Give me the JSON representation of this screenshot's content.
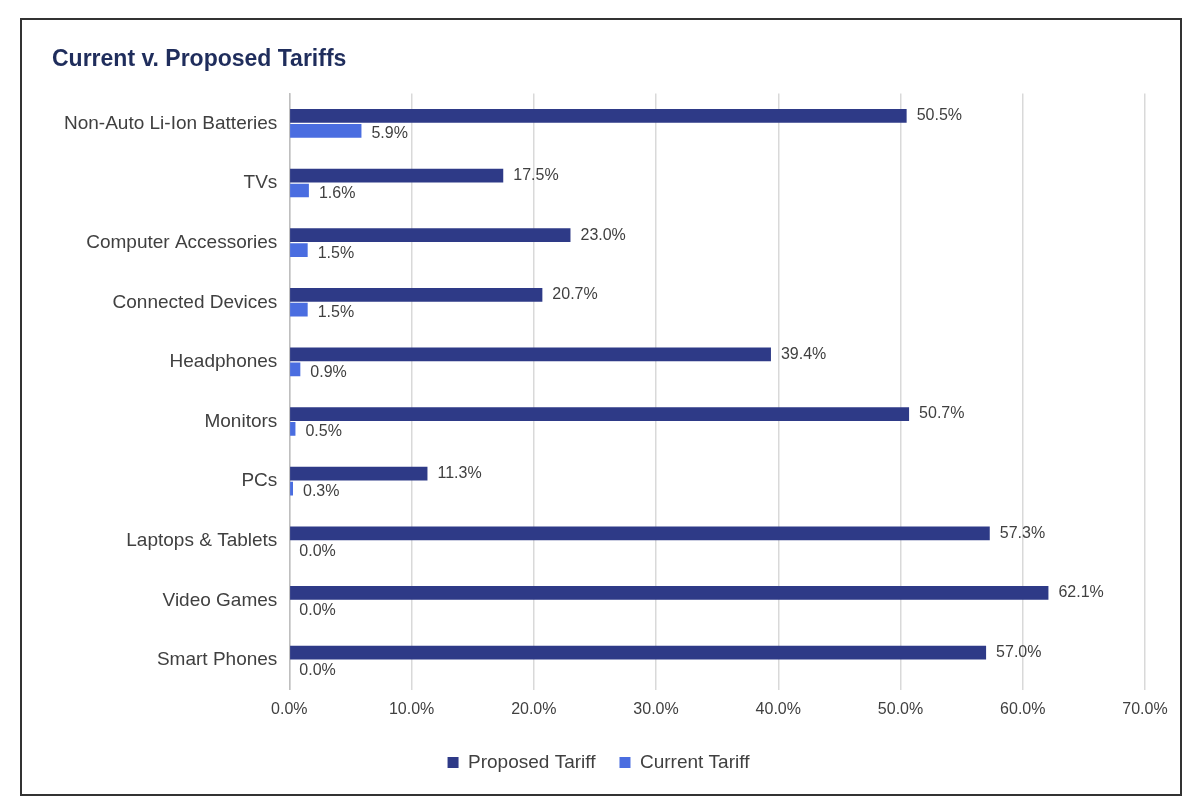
{
  "chart_data": {
    "type": "bar",
    "title": "Current v. Proposed Tariffs",
    "orientation": "horizontal",
    "categories": [
      "Non-Auto Li-Ion Batteries",
      "TVs",
      "Computer Accessories",
      "Connected Devices",
      "Headphones",
      "Monitors",
      "PCs",
      "Laptops & Tablets",
      "Video Games",
      "Smart Phones"
    ],
    "series": [
      {
        "name": "Proposed Tariff",
        "color": "#2e3a87",
        "values": [
          50.5,
          17.5,
          23.0,
          20.7,
          39.4,
          50.7,
          11.3,
          57.3,
          62.1,
          57.0
        ],
        "value_labels": [
          "50.5%",
          "17.5%",
          "23.0%",
          "20.7%",
          "39.4%",
          "50.7%",
          "11.3%",
          "57.3%",
          "62.1%",
          "57.0%"
        ]
      },
      {
        "name": "Current Tariff",
        "color": "#4a6de0",
        "values": [
          5.9,
          1.6,
          1.5,
          1.5,
          0.9,
          0.5,
          0.3,
          0.0,
          0.0,
          0.0
        ],
        "value_labels": [
          "5.9%",
          "1.6%",
          "1.5%",
          "1.5%",
          "0.9%",
          "0.5%",
          "0.3%",
          "0.0%",
          "0.0%",
          "0.0%"
        ]
      }
    ],
    "xlim": [
      0,
      70
    ],
    "xticks": [
      {
        "value": 0,
        "label": "0.0%"
      },
      {
        "value": 10,
        "label": "10.0%"
      },
      {
        "value": 20,
        "label": "20.0%"
      },
      {
        "value": 30,
        "label": "30.0%"
      },
      {
        "value": 40,
        "label": "40.0%"
      },
      {
        "value": 50,
        "label": "50.0%"
      },
      {
        "value": 60,
        "label": "60.0%"
      },
      {
        "value": 70,
        "label": "70.0%"
      }
    ],
    "grid": true,
    "legend": "bottom",
    "data_labels": true
  }
}
